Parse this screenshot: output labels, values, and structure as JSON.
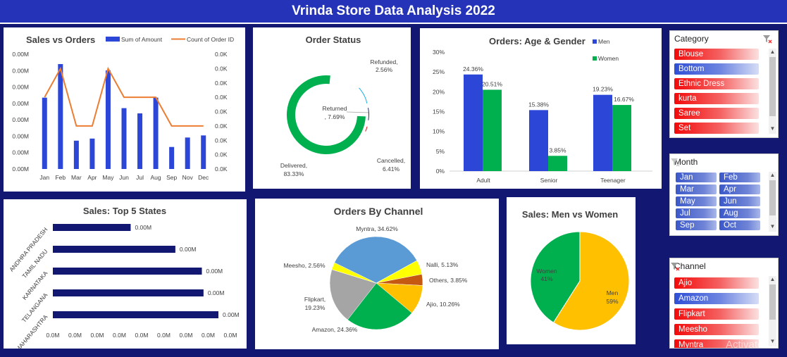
{
  "title": "Vrinda Store Data Analysis 2022",
  "watermark": "Activate W",
  "colors": {
    "men": "#2c46d8",
    "women": "#00b04f",
    "navy": "#121772",
    "line": "#ed7d31"
  },
  "sales_vs_orders": {
    "title": "Sales vs Orders",
    "legend_amount": "Sum of Amount",
    "legend_orders": "Count of Order ID",
    "left_ticks": [
      "0.00M",
      "0.00M",
      "0.00M",
      "0.00M",
      "0.00M",
      "0.00M",
      "0.00M",
      "0.00M"
    ],
    "right_ticks": [
      "0.0K",
      "0.0K",
      "0.0K",
      "0.0K",
      "0.0K",
      "0.0K",
      "0.0K",
      "0.0K",
      "0.0K"
    ],
    "months": [
      "Jan",
      "Feb",
      "Mar",
      "Apr",
      "May",
      "Jun",
      "Jul",
      "Aug",
      "Sep",
      "Nov",
      "Dec"
    ]
  },
  "order_status": {
    "title": "Order Status",
    "label_refunded": "Refunded,",
    "val_refunded": "2.56%",
    "label_returned": "Returned",
    "val_returned": ", 7.69%",
    "label_cancelled": "Cancelled,",
    "val_cancelled": "6.41%",
    "label_delivered": "Delivered,",
    "val_delivered": "83.33%"
  },
  "age_gender": {
    "title": "Orders: Age & Gender",
    "legend_men": "Men",
    "legend_women": "Women",
    "yticks": [
      "30%",
      "25%",
      "20%",
      "15%",
      "10%",
      "5%",
      "0%"
    ]
  },
  "top_states": {
    "title": "Sales: Top 5 States",
    "xticks": [
      "0.0M",
      "0.0M",
      "0.0M",
      "0.0M",
      "0.0M",
      "0.0M",
      "0.0M",
      "0.0M",
      "0.0M"
    ]
  },
  "channels_chart": {
    "title": "Orders By Channel"
  },
  "men_women": {
    "title": "Sales: Men vs Women",
    "label_women": "Women",
    "val_women": "41%",
    "label_men": "Men",
    "val_men": "59%"
  },
  "chart_data": [
    {
      "type": "bar",
      "title": "Sales vs Orders",
      "categories": [
        "Jan",
        "Feb",
        "Mar",
        "Apr",
        "May",
        "Jun",
        "Jul",
        "Aug",
        "Sep",
        "Nov",
        "Dec"
      ],
      "series": [
        {
          "name": "Sum of Amount",
          "values": [
            0.68,
            1.0,
            0.27,
            0.29,
            0.94,
            0.58,
            0.53,
            0.68,
            0.21,
            0.3,
            0.32
          ]
        },
        {
          "name": "Count of Order ID",
          "values": [
            0.625,
            0.875,
            0.375,
            0.375,
            0.875,
            0.625,
            0.625,
            0.625,
            0.375,
            0.375,
            0.375
          ]
        }
      ]
    },
    {
      "type": "pie",
      "title": "Order Status",
      "categories": [
        "Delivered",
        "Returned",
        "Cancelled",
        "Refunded"
      ],
      "values": [
        83.33,
        7.69,
        6.41,
        2.56
      ],
      "colors": [
        "#00b04f",
        "#1ab1ec",
        "#203864",
        "#e81313"
      ],
      "data_labels": [
        "Delivered, 83.33%",
        "Returned, 7.69%",
        "Cancelled, 6.41%",
        "Refunded, 2.56%"
      ]
    },
    {
      "type": "bar",
      "title": "Orders: Age & Gender",
      "categories": [
        "Adult",
        "Senior",
        "Teenager"
      ],
      "series": [
        {
          "name": "Men",
          "values": [
            24.36,
            15.38,
            19.23
          ]
        },
        {
          "name": "Women",
          "values": [
            20.51,
            3.85,
            16.67
          ]
        }
      ],
      "data_labels": [
        [
          "24.36%",
          "15.38%",
          "19.23%"
        ],
        [
          "20.51%",
          "3.85%",
          "16.67%"
        ]
      ],
      "ylim": [
        0,
        30
      ]
    },
    {
      "type": "bar",
      "title": "Sales: Top 5 States",
      "categories": [
        "ANDHRA PRADESH",
        "TAMIL NADU",
        "KARNATAKA",
        "TELANGANA",
        "MAHARASHTRA"
      ],
      "values": [
        0.47,
        0.74,
        0.9,
        0.91,
        1.0
      ],
      "data_labels": [
        "0.00M",
        "0.00M",
        "0.00M",
        "0.00M",
        "0.00M"
      ]
    },
    {
      "type": "pie",
      "title": "Orders By Channel",
      "categories": [
        "Myntra",
        "Nalli",
        "Others",
        "Ajio",
        "Amazon",
        "Flipkart",
        "Meesho"
      ],
      "values": [
        34.62,
        5.13,
        3.85,
        10.26,
        24.36,
        19.23,
        2.56
      ],
      "colors": [
        "#5b9bd5",
        "#ffff00",
        "#c65911",
        "#ffc000",
        "#00b04f",
        "#a5a5a5",
        "#ffff00"
      ],
      "data_labels": [
        "Myntra, 34.62%",
        "Nalli, 5.13%",
        "Others, 3.85%",
        "Ajio, 10.26%",
        "Amazon, 24.36%",
        "Flipkart, 19.23%",
        "Meesho, 2.56%"
      ]
    },
    {
      "type": "pie",
      "title": "Sales: Men vs Women",
      "categories": [
        "Men",
        "Women"
      ],
      "values": [
        59,
        41
      ],
      "colors": [
        "#ffc000",
        "#00b04f"
      ],
      "data_labels": [
        "Men 59%",
        "Women 41%"
      ]
    }
  ],
  "slicers": {
    "category": {
      "title": "Category",
      "items": [
        "Blouse",
        "Bottom",
        "Ethnic Dress",
        "kurta",
        "Saree",
        "Set"
      ],
      "styles": [
        "red",
        "blue",
        "red",
        "red",
        "red",
        "red"
      ]
    },
    "month": {
      "title": "Month",
      "items": [
        "Jan",
        "Feb",
        "Mar",
        "Apr",
        "May",
        "Jun",
        "Jul",
        "Aug",
        "Sep",
        "Oct"
      ]
    },
    "channel": {
      "title": "Channel",
      "items": [
        "Ajio",
        "Amazon",
        "Flipkart",
        "Meesho",
        "Myntra"
      ],
      "styles": [
        "red",
        "blue",
        "red",
        "red",
        "red"
      ]
    }
  }
}
